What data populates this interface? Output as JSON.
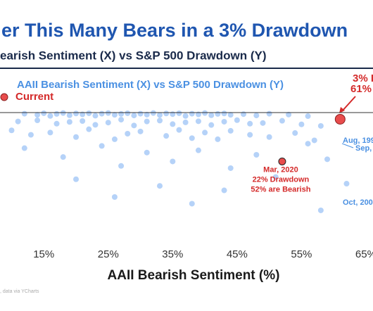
{
  "chart_data": {
    "type": "scatter",
    "title": "er This Many Bears in a 3% Drawdown",
    "subtitle": "earish Sentiment (X) vs S&P 500 Drawdown (Y)",
    "x_label": "AAII Bearish Sentiment (%)",
    "source": ", data via YCharts",
    "xlim": [
      8.2,
      66.1
    ],
    "ylim": [
      0,
      57
    ],
    "y_inverted": true,
    "xticks": [
      {
        "value": 15,
        "label": "15%"
      },
      {
        "value": 25,
        "label": "25%"
      },
      {
        "value": 35,
        "label": "35%"
      },
      {
        "value": 45,
        "label": "45%"
      },
      {
        "value": 55,
        "label": "55%"
      },
      {
        "value": 65,
        "label": "65%"
      }
    ],
    "series": [
      {
        "name": "AAII Bearish Sentiment (X) vs S&P 500 Drawdown (Y)",
        "color": "#5b9cf0",
        "x": [
          12,
          14,
          15,
          16,
          17,
          18,
          19,
          20,
          21,
          22,
          23,
          24,
          25,
          26,
          27,
          28,
          29,
          30,
          31,
          32,
          33,
          34,
          35,
          36,
          37,
          38,
          39,
          40,
          41,
          42,
          43,
          44,
          46,
          48,
          50,
          53,
          56,
          11,
          14,
          17,
          19,
          21,
          23,
          25,
          27,
          29,
          31,
          33,
          35,
          37,
          39,
          41,
          43,
          45,
          47,
          49,
          52,
          55,
          58,
          10,
          13,
          16,
          20,
          22,
          26,
          28,
          30,
          34,
          36,
          38,
          40,
          42,
          44,
          47,
          50,
          54,
          57,
          12,
          18,
          24,
          27,
          31,
          35,
          39,
          44,
          48,
          56,
          59,
          20,
          26,
          33,
          38,
          43,
          51,
          58,
          62
        ],
        "values": [
          0.5,
          1,
          0.3,
          1.5,
          0.6,
          0.2,
          1.2,
          0.4,
          0.8,
          0.3,
          1.4,
          0.5,
          0.2,
          1,
          0.6,
          0.3,
          1.3,
          0.5,
          0.9,
          0.2,
          1.1,
          0.4,
          0.7,
          0.3,
          1.5,
          0.5,
          0.8,
          0.2,
          1.2,
          0.6,
          0.4,
          1,
          0.7,
          1.3,
          0.5,
          0.9,
          1.6,
          4,
          3.5,
          5,
          4.2,
          3.8,
          5.5,
          4.5,
          3.2,
          5.8,
          4,
          3.6,
          5.2,
          4.4,
          3.9,
          5.6,
          4.1,
          3.4,
          5,
          4.7,
          3.7,
          5.3,
          6,
          8,
          10,
          9,
          11,
          7.5,
          12,
          9.5,
          8.5,
          10.5,
          7.8,
          11.5,
          9,
          12,
          8.2,
          10,
          11,
          9.2,
          12.5,
          16,
          20,
          15,
          24,
          18,
          22,
          17,
          25,
          19,
          14,
          21,
          30,
          38,
          33,
          41,
          35,
          29,
          44,
          32
        ]
      },
      {
        "name": "Current",
        "color": "#e84c4c",
        "x": [
          61
        ],
        "values": [
          3
        ]
      }
    ],
    "highlight": {
      "x": 52,
      "value": 22,
      "color": "#e84c4c",
      "labels": [
        "Mar, 2020",
        "22% Drawdown",
        "52% are Bearish"
      ]
    },
    "annotations": [
      "3% I",
      "61%",
      "Aug, 199",
      "Sep,",
      "Oct, 200"
    ]
  }
}
